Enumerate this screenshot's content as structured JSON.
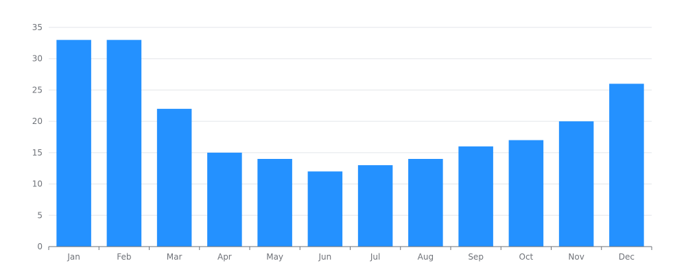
{
  "chart_data": {
    "type": "bar",
    "title": "",
    "xlabel": "",
    "ylabel": "",
    "categories": [
      "Jan",
      "Feb",
      "Mar",
      "Apr",
      "May",
      "Jun",
      "Jul",
      "Aug",
      "Sep",
      "Oct",
      "Nov",
      "Dec"
    ],
    "values": [
      33,
      33,
      22,
      15,
      14,
      12,
      13,
      14,
      16,
      17,
      20,
      26
    ],
    "ylim": [
      0,
      35
    ],
    "yticks": [
      0,
      5,
      10,
      15,
      20,
      25,
      30,
      35
    ],
    "grid": true,
    "legend": "none",
    "bar_color": "#2491ff"
  }
}
